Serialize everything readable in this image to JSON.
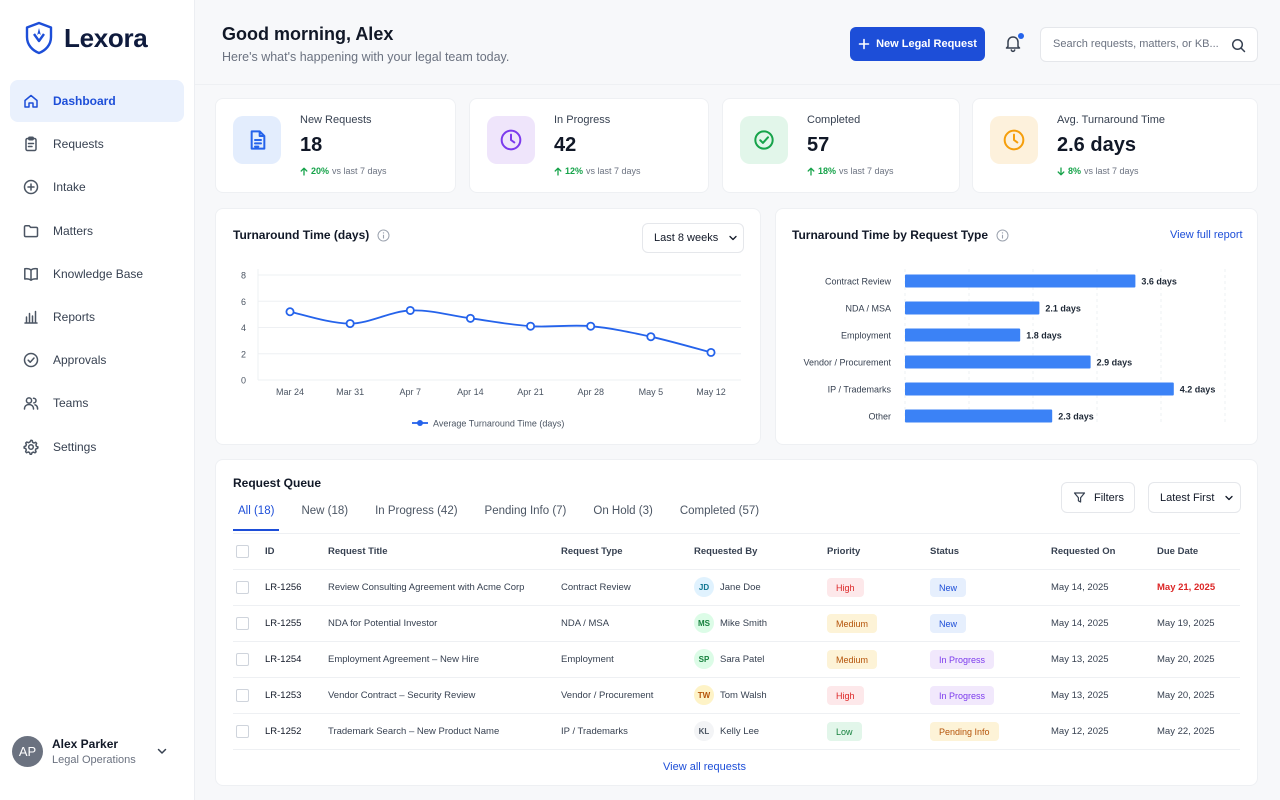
{
  "brand": {
    "name": "Lexora"
  },
  "nav": [
    {
      "label": "Dashboard",
      "icon": "home-icon",
      "active": true
    },
    {
      "label": "Requests",
      "icon": "clipboard-icon"
    },
    {
      "label": "Intake",
      "icon": "plus-circle-icon"
    },
    {
      "label": "Matters",
      "icon": "folder-icon"
    },
    {
      "label": "Knowledge Base",
      "icon": "book-icon"
    },
    {
      "label": "Reports",
      "icon": "bar-chart-icon"
    },
    {
      "label": "Approvals",
      "icon": "check-circle-icon"
    },
    {
      "label": "Teams",
      "icon": "users-icon"
    },
    {
      "label": "Settings",
      "icon": "gear-icon"
    }
  ],
  "user": {
    "initials": "AP",
    "name": "Alex Parker",
    "role": "Legal Operations"
  },
  "header": {
    "greeting": "Good morning, Alex",
    "subtitle": "Here's what's happening with your legal team today.",
    "new_button": "New Legal Request",
    "search_placeholder": "Search requests, matters, or KB..."
  },
  "kpis": [
    {
      "label": "New Requests",
      "value": "18",
      "change": "20%",
      "direction": "up",
      "suffix": "vs last 7 days",
      "icon": "document-icon",
      "bg": "#e3edfd",
      "fg": "#2563eb"
    },
    {
      "label": "In Progress",
      "value": "42",
      "change": "12%",
      "direction": "up",
      "suffix": "vs last 7 days",
      "icon": "clock-icon",
      "bg": "#efe5fb",
      "fg": "#7c3aed"
    },
    {
      "label": "Completed",
      "value": "57",
      "change": "18%",
      "direction": "up",
      "suffix": "vs last 7 days",
      "icon": "check-circle-icon",
      "bg": "#e2f6ea",
      "fg": "#16a34a"
    },
    {
      "label": "Avg. Turnaround Time",
      "value": "2.6 days",
      "change": "8%",
      "direction": "down",
      "suffix": "vs last 7 days",
      "icon": "clock-icon",
      "bg": "#fdf1dc",
      "fg": "#f59e0b"
    }
  ],
  "line_card": {
    "title": "Turnaround Time (days)",
    "range_label": "Last 8 weeks"
  },
  "bar_card": {
    "title": "Turnaround Time by Request Type",
    "link": "View full report"
  },
  "chart_data": [
    {
      "type": "line",
      "title": "Turnaround Time (days)",
      "x": [
        "Mar 24",
        "Mar 31",
        "Apr 7",
        "Apr 14",
        "Apr 21",
        "Apr 28",
        "May 5",
        "May 12"
      ],
      "series": [
        {
          "name": "Average Turnaround Time (days)",
          "values": [
            5.2,
            4.3,
            5.3,
            4.7,
            4.1,
            4.1,
            3.3,
            2.1
          ],
          "color": "#2563eb"
        }
      ],
      "yticks": [
        0,
        2,
        4,
        6,
        8
      ],
      "ylim": [
        0,
        8
      ],
      "grid": true,
      "legend": "bottom"
    },
    {
      "type": "bar",
      "orientation": "horizontal",
      "title": "Turnaround Time by Request Type",
      "categories": [
        "Contract Review",
        "NDA / MSA",
        "Employment",
        "Vendor / Procurement",
        "IP / Trademarks",
        "Other"
      ],
      "values": [
        3.6,
        2.1,
        1.8,
        2.9,
        4.2,
        2.3
      ],
      "labels": [
        "3.6 days",
        "2.1 days",
        "1.8 days",
        "2.9 days",
        "4.2 days",
        "2.3 days"
      ],
      "xlim": [
        0,
        5
      ],
      "color": "#3b82f6",
      "grid": true
    }
  ],
  "queue": {
    "title": "Request Queue",
    "filters_label": "Filters",
    "sort_label": "Latest First",
    "tabs": [
      "All (18)",
      "New (18)",
      "In Progress (42)",
      "Pending Info (7)",
      "On Hold (3)",
      "Completed (57)"
    ],
    "columns": [
      "ID",
      "Request Title",
      "Request Type",
      "Requested By",
      "Priority",
      "Status",
      "Requested On",
      "Due Date"
    ],
    "rows": [
      {
        "id": "LR-1256",
        "title": "Review Consulting Agreement with Acme Corp",
        "type": "Contract Review",
        "initials": "JD",
        "by": "Jane Doe",
        "priority": "High",
        "status": "New",
        "requested": "May 14, 2025",
        "due": "May 21, 2025",
        "due_overdue": true
      },
      {
        "id": "LR-1255",
        "title": "NDA for Potential Investor",
        "type": "NDA / MSA",
        "initials": "MS",
        "by": "Mike Smith",
        "priority": "Medium",
        "status": "New",
        "requested": "May 14, 2025",
        "due": "May 19, 2025"
      },
      {
        "id": "LR-1254",
        "title": "Employment Agreement – New Hire",
        "type": "Employment",
        "initials": "SP",
        "by": "Sara Patel",
        "priority": "Medium",
        "status": "In Progress",
        "requested": "May 13, 2025",
        "due": "May 20, 2025"
      },
      {
        "id": "LR-1253",
        "title": "Vendor Contract – Security Review",
        "type": "Vendor / Procurement",
        "initials": "TW",
        "by": "Tom Walsh",
        "priority": "High",
        "status": "In Progress",
        "requested": "May 13, 2025",
        "due": "May 20, 2025"
      },
      {
        "id": "LR-1252",
        "title": "Trademark Search – New Product Name",
        "type": "IP / Trademarks",
        "initials": "KL",
        "by": "Kelly Lee",
        "priority": "Low",
        "status": "Pending Info",
        "requested": "May 12, 2025",
        "due": "May 22, 2025"
      }
    ],
    "view_all": "View all requests"
  }
}
